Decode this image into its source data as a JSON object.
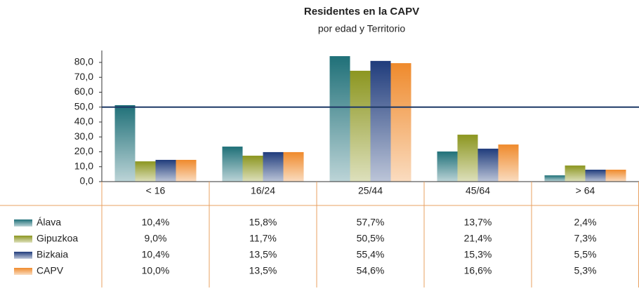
{
  "chart_data": {
    "type": "bar",
    "title": "Residentes en la CAPV",
    "subtitle": "por edad y Territorio",
    "categories": [
      "< 16",
      "16/24",
      "25/44",
      "45/64",
      "> 64"
    ],
    "series": [
      {
        "name": "Álava",
        "color": "#1f7078",
        "values": [
          51.3,
          23.5,
          84.2,
          20.2,
          4.2
        ]
      },
      {
        "name": "Gipuzkoa",
        "color": "#8c9620",
        "values": [
          13.6,
          17.4,
          74.4,
          31.5,
          10.8
        ]
      },
      {
        "name": "Bizkaia",
        "color": "#203c7c",
        "values": [
          14.6,
          19.8,
          81.0,
          22.1,
          8.0
        ]
      },
      {
        "name": "CAPV",
        "color": "#ef8a2c",
        "values": [
          14.6,
          19.8,
          79.5,
          24.9,
          8.0
        ]
      }
    ],
    "ylim": [
      0,
      88
    ],
    "yticks": [
      {
        "value": 0,
        "label": "0,0"
      },
      {
        "value": 10,
        "label": "10,0"
      },
      {
        "value": 20,
        "label": "20,0"
      },
      {
        "value": 30,
        "label": "30,0"
      },
      {
        "value": 40,
        "label": "40,0"
      },
      {
        "value": 50,
        "label": "50,0"
      },
      {
        "value": 60,
        "label": "60,0"
      },
      {
        "value": 70,
        "label": "70,0"
      },
      {
        "value": 80,
        "label": "80,0"
      }
    ],
    "reference_line": 50,
    "grid": false
  },
  "table": {
    "rows": [
      [
        "10,4%",
        "15,8%",
        "57,7%",
        "13,7%",
        "2,4%"
      ],
      [
        "9,0%",
        "11,7%",
        "50,5%",
        "21,4%",
        "7,3%"
      ],
      [
        "10,4%",
        "13,5%",
        "55,4%",
        "15,3%",
        "5,5%"
      ],
      [
        "10,0%",
        "13,5%",
        "54,6%",
        "16,6%",
        "5,3%"
      ]
    ]
  }
}
